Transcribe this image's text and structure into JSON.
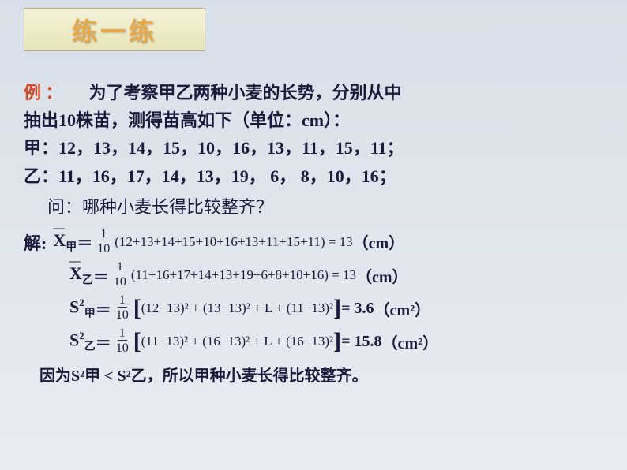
{
  "title": "练一练",
  "problem": {
    "label": "例 ：",
    "text1": "　　为了考察甲乙两种小麦的长势，分别从中",
    "text2": "抽出10株苗，测得苗高如下（单位：cm）：",
    "jia_label": "甲：",
    "jia_data": "12，13，14，15，10，16，13，11，15，11；",
    "yi_label": "乙：",
    "yi_data": "11，16，17，14，13，19，  6，  8，10，16；",
    "question": "问：哪种小麦长得比较整齐？"
  },
  "solution": {
    "label": "解:",
    "mean_jia": {
      "var": "X",
      "sub": "甲",
      "frac_num": "1",
      "frac_den": "10",
      "expr": "(12+13+14+15+10+16+13+11+15+11) = 13",
      "unit": "（cm）"
    },
    "mean_yi": {
      "var": "X",
      "sub": "乙",
      "frac_num": "1",
      "frac_den": "10",
      "expr": "(11+16+17+14+13+19+6+8+10+16) = 13",
      "unit": "（cm）"
    },
    "var_jia": {
      "var": "S",
      "sup": "2",
      "sub": "甲",
      "frac_num": "1",
      "frac_den": "10",
      "expr": "(12−13)² + (13−13)² + L  + (11−13)²",
      "result": "= 3.6",
      "unit": "（cm²）"
    },
    "var_yi": {
      "var": "S",
      "sup": "2",
      "sub": "乙",
      "frac_num": "1",
      "frac_den": "10",
      "expr": "(11−13)² + (16−13)² + L  + (16−13)²",
      "result": "= 15.8",
      "unit": "（cm²）"
    },
    "conclusion": "因为S²甲 < S²乙，所以甲种小麦长得比较整齐。"
  },
  "colors": {
    "bg_top": "#d8dfe8",
    "bg_bottom": "#e8ecf2",
    "title_bg": "#f5f3d8",
    "title_text": "#e9a84a",
    "example_label": "#d44828",
    "body_text": "#1a1a3a"
  }
}
